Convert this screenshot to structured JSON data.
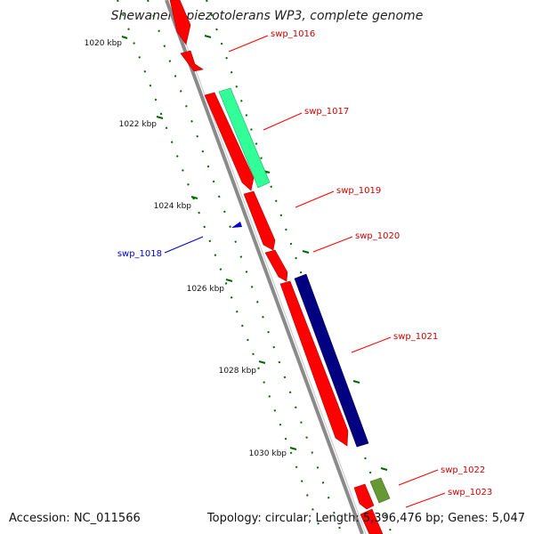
{
  "title": "Shewanella piezotolerans WP3, complete genome",
  "footer": {
    "accession": "Accession: NC_011566",
    "topology": "Topology: circular; Length: 5,396,476 bp; Genes: 5,047"
  },
  "ticks": [
    "1020 kbp",
    "1022 kbp",
    "1024 kbp",
    "1026 kbp",
    "1028 kbp",
    "1030 kbp"
  ],
  "genes": [
    {
      "id": "swp_1016",
      "color": "#ff0000"
    },
    {
      "id": "swp_1017",
      "color": "#ff0000"
    },
    {
      "id": "swp_1019",
      "color": "#ff0000"
    },
    {
      "id": "swp_1020",
      "color": "#ff0000"
    },
    {
      "id": "swp_1018",
      "color": "#0000cc"
    },
    {
      "id": "swp_1021",
      "color": "#ff0000"
    },
    {
      "id": "swp_1022",
      "color": "#ff0000"
    },
    {
      "id": "swp_1023",
      "color": "#ff0000"
    }
  ],
  "colors": {
    "backbone": "#8a8a8a",
    "forward_cds": "#ff0000",
    "reverse_cds": "#0000cc",
    "feature_cyan": "#33ff99",
    "feature_navy": "#000080",
    "feature_olive": "#669933",
    "tick": "#006600"
  }
}
